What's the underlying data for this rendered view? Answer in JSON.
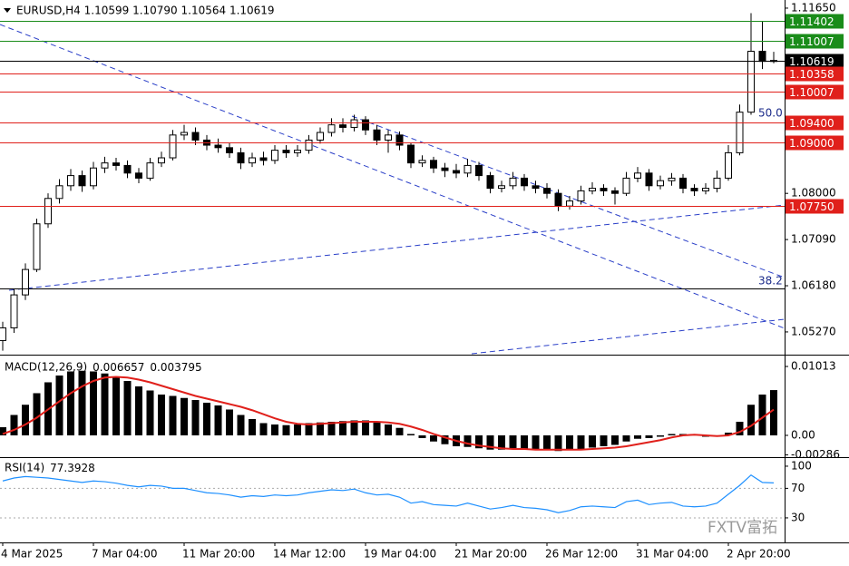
{
  "chart_data": [
    {
      "type": "candlestick",
      "title": "EURUSD,H4 1.10599 1.10790 1.10564 1.10619",
      "categories": [
        "4 Mar 2025",
        null,
        null,
        null,
        null,
        null,
        null,
        null,
        "7 Mar 04:00",
        null,
        null,
        null,
        null,
        null,
        null,
        null,
        "11 Mar 20:00",
        null,
        null,
        null,
        null,
        null,
        null,
        null,
        "14 Mar 12:00",
        null,
        null,
        null,
        null,
        null,
        null,
        null,
        "19 Mar 04:00",
        null,
        null,
        null,
        null,
        null,
        null,
        null,
        "21 Mar 20:00",
        null,
        null,
        null,
        null,
        null,
        null,
        null,
        "26 Mar 12:00",
        null,
        null,
        null,
        null,
        null,
        null,
        null,
        "31 Mar 04:00",
        null,
        null,
        null,
        null,
        null,
        null,
        null,
        "2 Apr 20:00",
        null,
        null,
        null,
        null
      ],
      "open": [
        1.051,
        1.0535,
        1.06,
        1.065,
        1.074,
        1.079,
        1.0815,
        1.0835,
        1.0815,
        1.085,
        1.086,
        1.0855,
        1.084,
        1.083,
        1.086,
        1.087,
        1.0915,
        1.092,
        1.0905,
        1.0895,
        1.089,
        1.088,
        1.086,
        1.087,
        1.0865,
        1.0885,
        1.088,
        1.0885,
        1.0905,
        1.092,
        1.0935,
        1.093,
        1.0945,
        1.0925,
        1.0905,
        1.0915,
        1.0895,
        1.086,
        1.0865,
        1.085,
        1.0845,
        1.084,
        1.0855,
        1.0835,
        1.081,
        1.0815,
        1.083,
        1.0815,
        1.081,
        1.08,
        1.0775,
        1.0785,
        1.0805,
        1.081,
        1.0805,
        1.08,
        1.083,
        1.084,
        1.0815,
        1.0825,
        1.083,
        1.081,
        1.0805,
        1.081,
        1.083,
        1.088,
        1.096,
        1.108,
        1.10599
      ],
      "high": [
        1.0547,
        1.0612,
        1.0662,
        1.075,
        1.08,
        1.0828,
        1.0848,
        1.0845,
        1.0862,
        1.0872,
        1.087,
        1.0865,
        1.085,
        1.087,
        1.0882,
        1.0925,
        1.0935,
        1.093,
        1.0915,
        1.0908,
        1.09,
        1.089,
        1.088,
        1.0882,
        1.0895,
        1.0895,
        1.0895,
        1.0915,
        1.093,
        1.0948,
        1.0948,
        1.0955,
        1.0952,
        1.0935,
        1.0925,
        1.0922,
        1.09,
        1.0875,
        1.0872,
        1.086,
        1.0858,
        1.0868,
        1.0862,
        1.0842,
        1.0825,
        1.0842,
        1.0838,
        1.0825,
        1.082,
        1.0808,
        1.0795,
        1.0815,
        1.0822,
        1.0818,
        1.0812,
        1.0842,
        1.0852,
        1.0848,
        1.0835,
        1.084,
        1.0838,
        1.0818,
        1.082,
        1.0845,
        1.0895,
        1.0975,
        1.1155,
        1.114,
        1.1079
      ],
      "low": [
        1.049,
        1.0525,
        1.059,
        1.0645,
        1.0732,
        1.078,
        1.0805,
        1.0803,
        1.0808,
        1.084,
        1.0845,
        1.083,
        1.082,
        1.0825,
        1.0852,
        1.0865,
        1.0905,
        1.0895,
        1.0885,
        1.088,
        1.087,
        1.0848,
        1.0852,
        1.0855,
        1.0858,
        1.087,
        1.0872,
        1.0878,
        1.0898,
        1.0912,
        1.092,
        1.0922,
        1.0915,
        1.0895,
        1.088,
        1.0885,
        1.085,
        1.0852,
        1.084,
        1.0832,
        1.083,
        1.0832,
        1.0825,
        1.08,
        1.0802,
        1.0808,
        1.0805,
        1.08,
        1.079,
        1.0765,
        1.0768,
        1.0778,
        1.0798,
        1.0795,
        1.0778,
        1.0795,
        1.0822,
        1.0805,
        1.0808,
        1.0815,
        1.08,
        1.0795,
        1.0798,
        1.0802,
        1.0825,
        1.0875,
        1.0955,
        1.1045,
        1.10564
      ],
      "close": [
        1.0535,
        1.06,
        1.065,
        1.074,
        1.079,
        1.0815,
        1.0835,
        1.0815,
        1.085,
        1.086,
        1.0855,
        1.084,
        1.083,
        1.086,
        1.087,
        1.0915,
        1.092,
        1.0905,
        1.0895,
        1.089,
        1.088,
        1.086,
        1.087,
        1.0865,
        1.0885,
        1.088,
        1.0885,
        1.0905,
        1.092,
        1.0935,
        1.093,
        1.0945,
        1.0925,
        1.0905,
        1.0915,
        1.0895,
        1.086,
        1.0865,
        1.085,
        1.0845,
        1.084,
        1.0855,
        1.0835,
        1.081,
        1.0815,
        1.083,
        1.0815,
        1.081,
        1.08,
        1.0775,
        1.0785,
        1.0805,
        1.081,
        1.0805,
        1.08,
        1.083,
        1.084,
        1.0815,
        1.0825,
        1.083,
        1.081,
        1.0805,
        1.081,
        1.083,
        1.088,
        1.096,
        1.108,
        1.106,
        1.10619
      ],
      "up_color": "#ffffff",
      "down_color": "#000000",
      "ylim": [
        1.0484,
        1.1181
      ],
      "yticks": [
        {
          "value": 1.1165,
          "label": "1.11650"
        },
        {
          "value": 1.08,
          "label": "1.08000"
        },
        {
          "value": 1.0709,
          "label": "1.07090"
        },
        {
          "value": 1.0618,
          "label": "1.06180"
        },
        {
          "value": 1.0527,
          "label": "1.05270"
        }
      ],
      "levels": [
        {
          "value": 1.11402,
          "label": "1.11402",
          "color": "#1a8c1a"
        },
        {
          "value": 1.11007,
          "label": "1.11007",
          "color": "#1a8c1a"
        },
        {
          "value": 1.10619,
          "label": "1.10619",
          "color": "#000000"
        },
        {
          "value": 1.10358,
          "label": "1.10358",
          "color": "#e0201b"
        },
        {
          "value": 1.10007,
          "label": "1.10007",
          "color": "#e0201b"
        },
        {
          "value": 1.094,
          "label": "1.09400",
          "color": "#e0201b"
        },
        {
          "value": 1.09,
          "label": "1.09000",
          "color": "#e0201b"
        },
        {
          "value": 1.0775,
          "label": "1.07750",
          "color": "#e0201b"
        },
        {
          "value": 1.0613,
          "color": "#000000"
        }
      ],
      "annotations": [
        "50.0",
        "38.2"
      ],
      "watermark": "FXTV富拓"
    },
    {
      "type": "macd",
      "title": "MACD(12,26,9)",
      "values": [
        0.0012,
        0.003,
        0.0045,
        0.0062,
        0.0078,
        0.0088,
        0.0094,
        0.0095,
        0.0094,
        0.0091,
        0.0086,
        0.008,
        0.0072,
        0.0066,
        0.006,
        0.0058,
        0.0055,
        0.0052,
        0.0048,
        0.0044,
        0.0038,
        0.003,
        0.0024,
        0.0018,
        0.0016,
        0.0015,
        0.0016,
        0.0018,
        0.0019,
        0.002,
        0.0021,
        0.0022,
        0.0022,
        0.002,
        0.0016,
        0.0011,
        0.0002,
        -0.0004,
        -0.0009,
        -0.0013,
        -0.0016,
        -0.0017,
        -0.0019,
        -0.0021,
        -0.0021,
        -0.002,
        -0.0021,
        -0.0022,
        -0.0022,
        -0.0023,
        -0.0022,
        -0.002,
        -0.0018,
        -0.0016,
        -0.0014,
        -0.0009,
        -0.0005,
        -0.0004,
        -0.0002,
        0.0002,
        0.0002,
        0.0001,
        -0.0002,
        -0.0002,
        0.0004,
        0.002,
        0.0045,
        0.006,
        0.006657
      ],
      "signal": [
        0.0002,
        0.0008,
        0.0016,
        0.0026,
        0.0038,
        0.005,
        0.0062,
        0.0072,
        0.008,
        0.0085,
        0.0086,
        0.0085,
        0.0082,
        0.0078,
        0.0073,
        0.0068,
        0.0063,
        0.0058,
        0.0054,
        0.005,
        0.0046,
        0.0042,
        0.0037,
        0.0031,
        0.0025,
        0.002,
        0.0017,
        0.0016,
        0.0017,
        0.0018,
        0.0019,
        0.002,
        0.002,
        0.002,
        0.0019,
        0.0017,
        0.0013,
        0.0008,
        0.0002,
        -0.0003,
        -0.0008,
        -0.0012,
        -0.0015,
        -0.0017,
        -0.0019,
        -0.002,
        -0.002,
        -0.0021,
        -0.0021,
        -0.0021,
        -0.0021,
        -0.0021,
        -0.002,
        -0.0019,
        -0.0018,
        -0.0016,
        -0.0013,
        -0.001,
        -0.0007,
        -0.0003,
        0,
        0.0001,
        0,
        -0.0001,
        0,
        0.0005,
        0.0014,
        0.0026,
        0.003795
      ],
      "color": "#000000",
      "signal_color": "#e0201b",
      "ylim": [
        -0.00307,
        0.0116
      ],
      "yticks": [
        0.01013,
        {
          "value": 0,
          "label": "0.00"
        },
        -0.00286
      ]
    },
    {
      "type": "line",
      "title": "RSI(14)",
      "values": [
        80,
        84,
        86,
        85,
        84,
        82,
        80,
        78,
        80,
        79,
        77,
        74,
        72,
        74,
        73,
        70,
        70,
        67,
        64,
        63,
        61,
        58,
        60,
        59,
        61,
        60,
        61,
        64,
        66,
        68,
        67,
        69,
        64,
        61,
        62,
        58,
        50,
        52,
        48,
        47,
        46,
        50,
        46,
        42,
        44,
        47,
        44,
        43,
        41,
        37,
        40,
        45,
        46,
        45,
        44,
        52,
        54,
        48,
        50,
        51,
        46,
        45,
        46,
        50,
        62,
        74,
        88,
        78,
        77.3928
      ],
      "color": "#1e90ff",
      "ylim": [
        -2,
        111
      ],
      "yticks": [
        100,
        70,
        30
      ],
      "levels": [
        70,
        30
      ]
    }
  ]
}
